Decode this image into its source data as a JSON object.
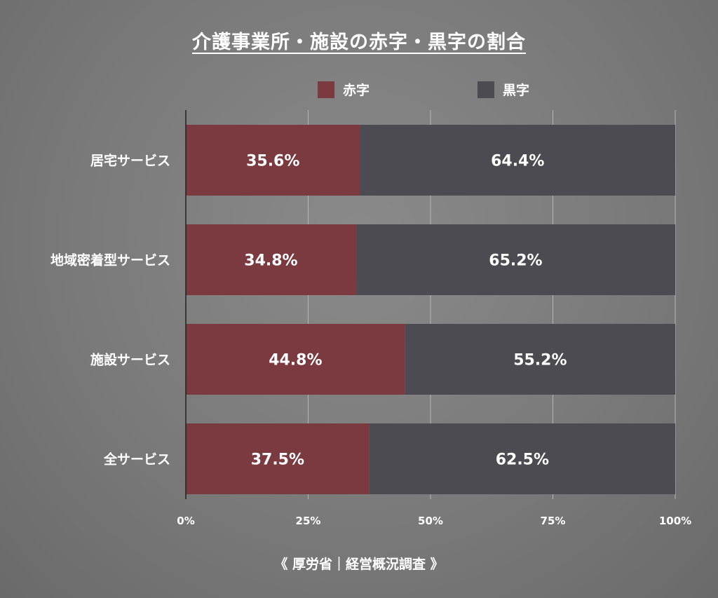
{
  "title": "介護事業所・施設の赤字・黒字の割合",
  "source": "《 厚労省｜経営概況調査 》",
  "colors": {
    "deficit": "#7a3a3f",
    "surplus": "#4c4b52",
    "grid": "#b5b5b5",
    "axis": "#222222"
  },
  "chart_data": {
    "type": "bar",
    "orientation": "horizontal",
    "stacked": true,
    "categories": [
      "居宅サービス",
      "地域密着型サービス",
      "施設サービス",
      "全サービス"
    ],
    "series": [
      {
        "name": "赤字",
        "values": [
          35.6,
          34.8,
          44.8,
          37.5
        ],
        "labels": [
          "35.6%",
          "34.8%",
          "44.8%",
          "37.5%"
        ]
      },
      {
        "name": "黒字",
        "values": [
          64.4,
          65.2,
          55.2,
          62.5
        ],
        "labels": [
          "64.4%",
          "65.2%",
          "55.2%",
          "62.5%"
        ]
      }
    ],
    "xlim": [
      0,
      100
    ],
    "xticks": [
      0,
      25,
      50,
      75,
      100
    ],
    "xtick_labels": [
      "0%",
      "25%",
      "50%",
      "75%",
      "100%"
    ],
    "grid": true,
    "legend": "top"
  }
}
